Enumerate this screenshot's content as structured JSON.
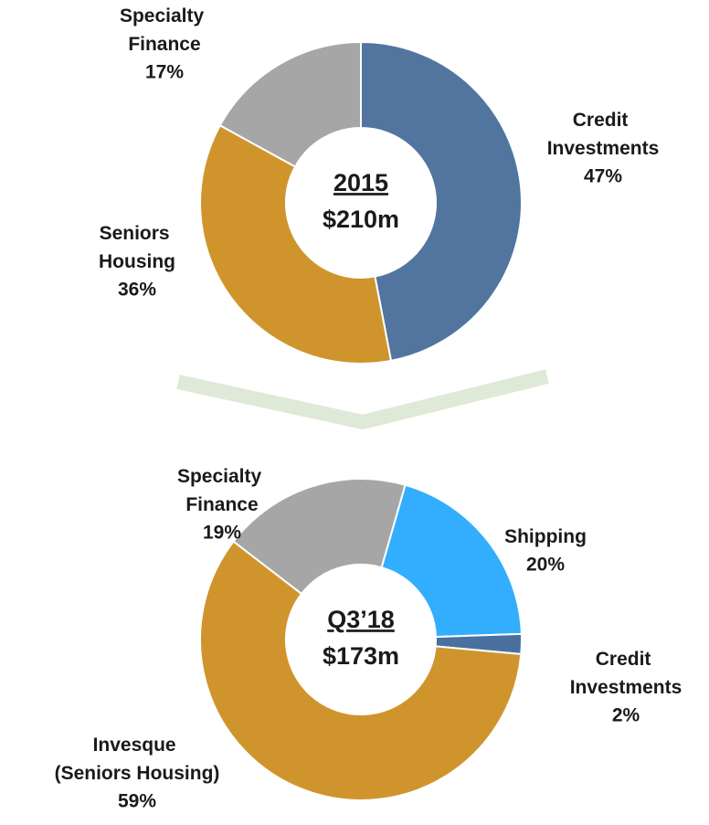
{
  "chart_data": [
    {
      "type": "donut",
      "title": "2015",
      "total_label": "$210m",
      "start_angle": 0,
      "categories": [
        "Credit Investments",
        "Seniors Housing",
        "Specialty Finance"
      ],
      "values": [
        47,
        36,
        17
      ],
      "value_labels": [
        "47%",
        "36%",
        "17%"
      ],
      "colors": [
        "#5275a0",
        "#cf952c",
        "#a6a6a6"
      ]
    },
    {
      "type": "donut",
      "title": "Q3’18",
      "total_label": "$173m",
      "start_angle": 16,
      "categories": [
        "Shipping",
        "Credit Investments",
        "Invesque (Seniors Housing)",
        "Specialty Finance"
      ],
      "values": [
        20,
        2,
        59,
        19
      ],
      "value_labels": [
        "20%",
        "2%",
        "59%",
        "19%"
      ],
      "colors": [
        "#33adfd",
        "#4a70a0",
        "#cf952c",
        "#a6a6a6"
      ]
    }
  ]
}
